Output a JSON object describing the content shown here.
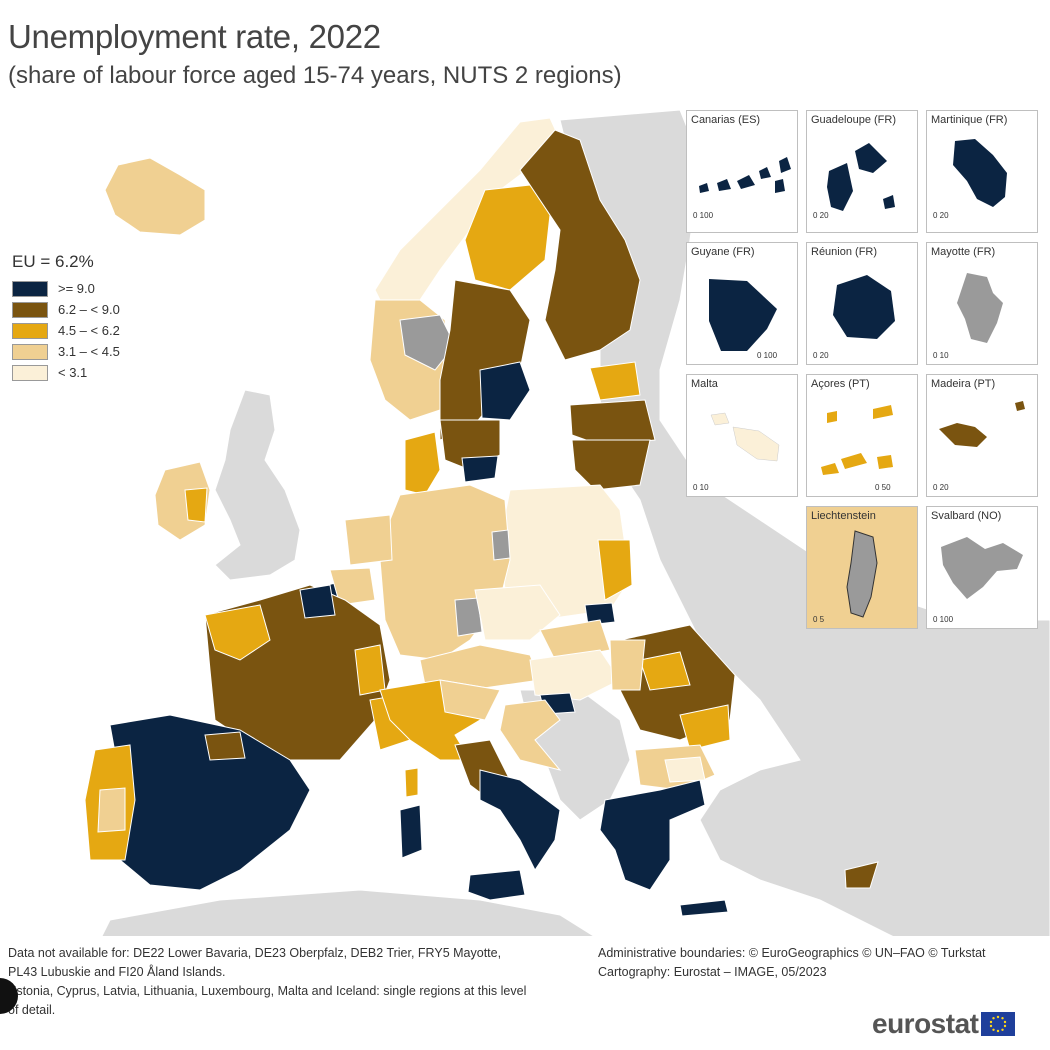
{
  "title": "Unemployment rate, 2022",
  "subtitle": "(share of labour force aged 15-74 years, NUTS 2 regions)",
  "legend": {
    "title": "EU = 6.2%",
    "items": [
      {
        "label": ">= 9.0",
        "color": "#0b2442"
      },
      {
        "label": "6.2 – < 9.0",
        "color": "#7a5410"
      },
      {
        "label": "4.5 – < 6.2",
        "color": "#e5a812"
      },
      {
        "label": "3.1 – < 4.5",
        "color": "#f0d092"
      },
      {
        "label": "< 3.1",
        "color": "#fbf0d8"
      }
    ]
  },
  "colors": {
    "no_data": "#9a9a9a",
    "non_eu": "#dadada",
    "sea": "#ffffff",
    "border": "#ffffff"
  },
  "insets": [
    {
      "label": "Canarias (ES)",
      "scale": "0   100"
    },
    {
      "label": "Guadeloupe (FR)",
      "scale": "0   20"
    },
    {
      "label": "Martinique (FR)",
      "scale": "0   20"
    },
    {
      "label": "Guyane (FR)",
      "scale": "0   100"
    },
    {
      "label": "Réunion (FR)",
      "scale": "0   20"
    },
    {
      "label": "Mayotte (FR)",
      "scale": "0   10"
    },
    {
      "label": "Malta",
      "scale": "0   10"
    },
    {
      "label": "Açores (PT)",
      "scale": "0   50"
    },
    {
      "label": "Madeira (PT)",
      "scale": "0   20"
    },
    {
      "label": "Liechtenstein",
      "scale": "0   5"
    },
    {
      "label": "Svalbard (NO)",
      "scale": "0   100"
    }
  ],
  "footer": {
    "note1": "Data not available for: DE22 Lower Bavaria, DE23 Oberpfalz, DEB2 Trier, FRY5 Mayotte, PL43 Lubuskie and FI20 Åland Islands.",
    "note2": "Estonia, Cyprus, Latvia, Lithuania, Luxembourg, Malta and Iceland: single regions at this level of detail.",
    "boundaries": "Administrative boundaries: © EuroGeographics © UN–FAO © Turkstat",
    "cartography": "Cartography: Eurostat – IMAGE, 05/2023"
  },
  "logo": "eurostat"
}
